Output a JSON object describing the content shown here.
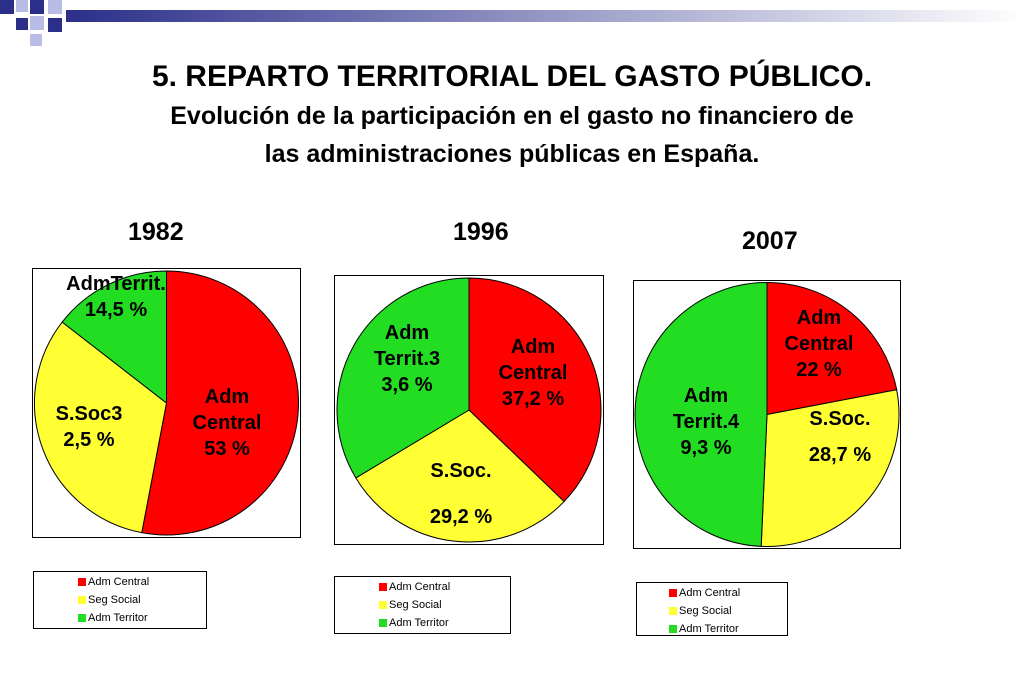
{
  "header": {
    "title": "5. REPARTO TERRITORIAL DEL GASTO PÚBLICO.",
    "subtitle_line1": "Evolución de la participación en el gasto no financiero de",
    "subtitle_line2": "las administraciones públicas en España."
  },
  "colors": {
    "adm_central": "#ff0000",
    "seg_social": "#ffff33",
    "adm_territor": "#22dd22",
    "deco_blue": "#2b2f8a",
    "deco_light": "#b9bde6"
  },
  "legend": [
    "Adm Central",
    "Seg Social",
    "Adm Territor"
  ],
  "chart_data": [
    {
      "type": "pie",
      "title": "1982",
      "categories": [
        "Adm Central",
        "Seg Social",
        "Adm Territor"
      ],
      "values": [
        53,
        32.5,
        14.5
      ],
      "labels": [
        {
          "lines": [
            "Adm",
            "Central",
            "53 %"
          ]
        },
        {
          "lines": [
            "S.Soc3",
            "2,5 %"
          ]
        },
        {
          "lines": [
            "AdmTerrit.",
            "14,5 %"
          ]
        }
      ]
    },
    {
      "type": "pie",
      "title": "1996",
      "categories": [
        "Adm Central",
        "Seg Social",
        "Adm Territor"
      ],
      "values": [
        37.2,
        29.2,
        33.6
      ],
      "labels": [
        {
          "lines": [
            "Adm",
            "Central",
            "37,2 %"
          ]
        },
        {
          "lines": [
            "S.Soc.",
            "",
            "29,2 %"
          ]
        },
        {
          "lines": [
            "Adm",
            "Territ.3",
            "3,6 %"
          ]
        }
      ]
    },
    {
      "type": "pie",
      "title": "2007",
      "categories": [
        "Adm Central",
        "Seg Social",
        "Adm Territor"
      ],
      "values": [
        22,
        28.7,
        49.3
      ],
      "labels": [
        {
          "lines": [
            "Adm",
            "Central",
            "22 %"
          ]
        },
        {
          "lines": [
            "S.Soc.",
            "",
            "28,7 %"
          ]
        },
        {
          "lines": [
            "Adm",
            "Territ.4",
            "9,3 %"
          ]
        }
      ]
    }
  ]
}
